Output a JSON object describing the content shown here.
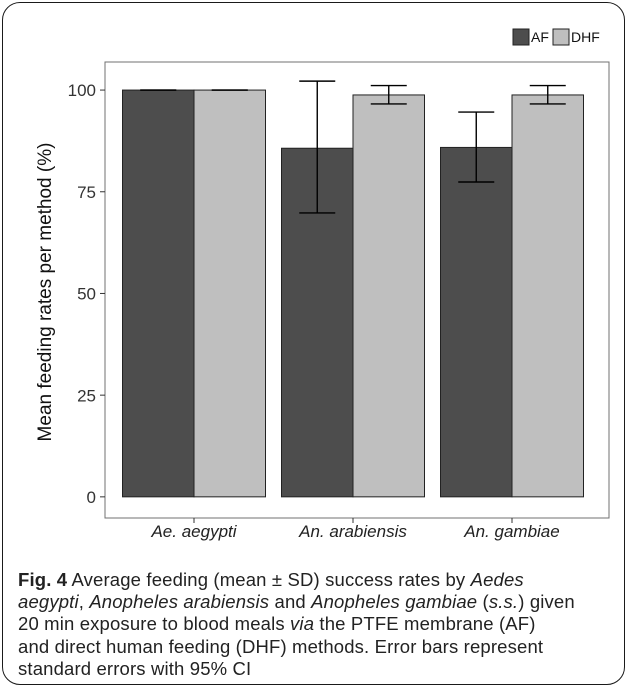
{
  "chart_data": {
    "type": "bar",
    "categories": [
      "Ae. aegypti",
      "An. arabiensis",
      "An. gambiae"
    ],
    "series": [
      {
        "name": "AF",
        "color": "#4d4d4d",
        "values": [
          100,
          85.7,
          85.9
        ],
        "error_lower": [
          100,
          69.8,
          77.4
        ],
        "error_upper": [
          100,
          102.2,
          94.6
        ]
      },
      {
        "name": "DHF",
        "color": "#bfbfbf",
        "values": [
          100,
          98.8,
          98.8
        ],
        "error_lower": [
          100,
          96.6,
          96.6
        ],
        "error_upper": [
          100,
          101.1,
          101.1
        ]
      }
    ],
    "ylabel": "Mean feeding rates per method (%)",
    "yticks": [
      0,
      25,
      50,
      75,
      100
    ],
    "ylim": [
      -5.2,
      106.9
    ],
    "legend_position": "top-right",
    "grid": false
  },
  "caption": {
    "lines": [
      [
        "Fig. 4",
        " Average feeding (mean ± SD) success rates by ",
        "Aedes"
      ],
      [
        "aegypti",
        ", ",
        "Anopheles arabiensis",
        " and ",
        "Anopheles gambiae",
        " (",
        "s.s.",
        ") given"
      ],
      [
        "20 min exposure to blood meals ",
        "via",
        " the PTFE membrane (AF)"
      ],
      [
        "and direct human feeding (DHF) methods. Error bars represent"
      ],
      [
        "standard errors with 95% CI"
      ]
    ]
  }
}
